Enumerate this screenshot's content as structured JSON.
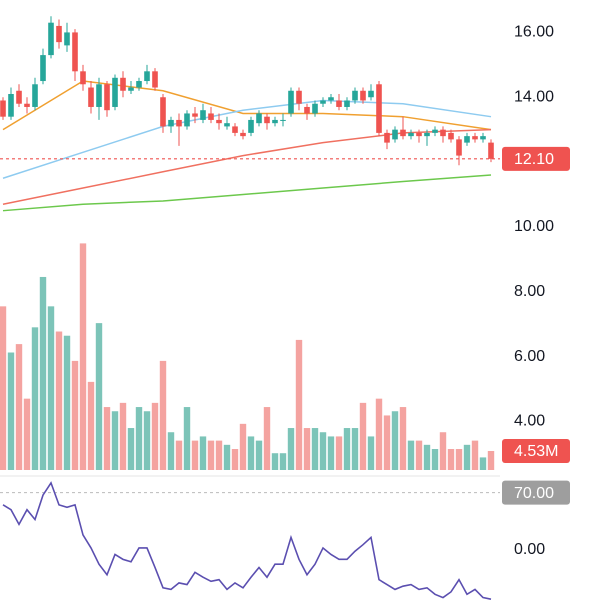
{
  "chart_data": {
    "type": "candlestick",
    "ylim": [
      2.5,
      17
    ],
    "yticks": [
      {
        "value": 4,
        "label": "4.00"
      },
      {
        "value": 6,
        "label": "6.00"
      },
      {
        "value": 8,
        "label": "8.00"
      },
      {
        "value": 10,
        "label": "10.00"
      },
      {
        "value": 12,
        "label": "12.00"
      },
      {
        "value": 14,
        "label": "14.00"
      },
      {
        "value": 16,
        "label": "16.00"
      }
    ],
    "up_color": "#26a69a",
    "down_color": "#ef5350",
    "open": [
      13.9,
      13.4,
      14.2,
      13.8,
      13.7,
      14.5,
      15.3,
      16.2,
      15.6,
      16.0,
      14.8,
      14.3,
      13.7,
      14.4,
      13.7,
      14.6,
      14.2,
      14.3,
      14.5,
      14.8,
      14.0,
      13.1,
      13.3,
      13.1,
      13.5,
      13.3,
      13.5,
      13.3,
      13.1,
      13.1,
      12.9,
      12.9,
      13.2,
      13.4,
      13.2,
      13.3,
      13.5,
      14.2,
      13.7,
      13.5,
      13.8,
      13.9,
      13.9,
      13.7,
      13.9,
      14.2,
      14.0,
      14.4,
      12.9,
      12.7,
      13.0,
      12.8,
      12.9,
      12.8,
      12.9,
      13.0,
      12.9,
      12.7,
      12.6,
      12.8,
      12.7,
      12.6
    ],
    "high": [
      14.0,
      14.3,
      14.4,
      14.0,
      14.6,
      15.5,
      16.5,
      16.4,
      16.3,
      16.1,
      15.0,
      14.5,
      14.6,
      14.5,
      14.7,
      14.8,
      14.5,
      14.6,
      15.0,
      14.9,
      14.1,
      13.4,
      13.5,
      13.6,
      13.7,
      13.8,
      13.7,
      13.5,
      13.4,
      13.2,
      13.0,
      13.4,
      13.6,
      13.5,
      13.4,
      13.5,
      14.3,
      14.3,
      13.8,
      13.9,
      14.0,
      14.1,
      14.1,
      14.0,
      14.3,
      14.3,
      14.4,
      14.5,
      13.0,
      13.1,
      13.4,
      13.0,
      13.0,
      13.0,
      13.1,
      13.1,
      13.0,
      12.8,
      12.9,
      12.9,
      12.9,
      12.7
    ],
    "low": [
      13.3,
      13.3,
      13.7,
      13.5,
      13.6,
      14.4,
      15.2,
      15.5,
      15.4,
      14.5,
      14.2,
      13.5,
      13.3,
      13.4,
      13.6,
      14.0,
      14.1,
      14.2,
      14.4,
      14.2,
      12.9,
      12.9,
      12.5,
      13.0,
      13.2,
      13.2,
      13.2,
      13.0,
      13.0,
      12.8,
      12.7,
      12.8,
      13.1,
      13.0,
      13.1,
      13.1,
      13.4,
      13.6,
      13.3,
      13.4,
      13.7,
      13.8,
      13.6,
      13.6,
      13.8,
      13.8,
      13.9,
      12.8,
      12.4,
      12.6,
      12.7,
      12.7,
      12.6,
      12.5,
      12.8,
      12.6,
      12.6,
      11.9,
      12.5,
      12.6,
      12.6,
      12.0
    ],
    "close": [
      13.4,
      14.1,
      13.8,
      13.7,
      14.4,
      15.3,
      16.3,
      15.7,
      16.0,
      14.8,
      14.4,
      13.7,
      14.4,
      13.6,
      14.6,
      14.2,
      14.3,
      14.5,
      14.8,
      14.3,
      13.1,
      13.3,
      13.1,
      13.5,
      13.4,
      13.6,
      13.3,
      13.2,
      13.2,
      12.9,
      12.8,
      13.3,
      13.5,
      13.2,
      13.3,
      13.3,
      14.2,
      13.8,
      13.5,
      13.8,
      13.9,
      14.0,
      13.7,
      13.9,
      14.2,
      13.9,
      14.2,
      12.9,
      12.6,
      13.0,
      12.8,
      12.9,
      12.8,
      12.9,
      13.0,
      12.8,
      12.7,
      12.2,
      12.8,
      12.7,
      12.8,
      12.1
    ],
    "last_price": {
      "value": 12.1,
      "label": "12.10"
    },
    "moving_averages": [
      {
        "color": "#f0a030",
        "x": [
          0,
          10,
          20,
          30,
          40,
          50,
          61
        ],
        "values": [
          13.0,
          14.5,
          14.2,
          13.5,
          13.5,
          13.4,
          13.0
        ]
      },
      {
        "color": "#8ecbf0",
        "x": [
          0,
          10,
          20,
          30,
          40,
          50,
          61
        ],
        "values": [
          11.5,
          12.3,
          13.1,
          13.6,
          13.9,
          13.8,
          13.4
        ]
      },
      {
        "color": "#f07060",
        "x": [
          0,
          10,
          20,
          30,
          40,
          50,
          61
        ],
        "values": [
          10.7,
          11.2,
          11.7,
          12.2,
          12.6,
          12.9,
          13.0
        ]
      },
      {
        "color": "#6cc84c",
        "x": [
          0,
          10,
          20,
          30,
          40,
          50,
          61
        ],
        "values": [
          10.5,
          10.7,
          10.8,
          11.0,
          11.2,
          11.4,
          11.6
        ]
      }
    ],
    "volume": {
      "ylim": [
        0,
        112
      ],
      "up_color": "#7cc4b8",
      "down_color": "#f4a3a0",
      "values": [
        39,
        28,
        30,
        17,
        34,
        46,
        39,
        33,
        32,
        26,
        54,
        21,
        35,
        15,
        14,
        16,
        10,
        15,
        14,
        16,
        26,
        9,
        7,
        15,
        7,
        8,
        7,
        7,
        6,
        5,
        11,
        8,
        7,
        15,
        4,
        4,
        10,
        31,
        10,
        10,
        9,
        8,
        8,
        10,
        10,
        16,
        8,
        17,
        13,
        14,
        15,
        7,
        7,
        6,
        5,
        9,
        5,
        5,
        6,
        7,
        3,
        4.53
      ],
      "last": {
        "value": 4.53,
        "label": "4.53M"
      }
    },
    "indicator": {
      "color": "#5b4fb0",
      "ylim": [
        -62,
        88
      ],
      "yticks": [
        {
          "value": 0,
          "label": "0.00"
        },
        {
          "value": 70,
          "label": "70.00"
        }
      ],
      "values": [
        55,
        49,
        31,
        49,
        37,
        67,
        82,
        55,
        52,
        55,
        18,
        2,
        -18,
        -31,
        -6,
        -12,
        -15,
        2,
        2,
        -22,
        -47,
        -49,
        -41,
        -43,
        -28,
        -34,
        -39,
        -37,
        -49,
        -41,
        -47,
        -34,
        -22,
        -34,
        -18,
        -18,
        15,
        -12,
        -31,
        -18,
        2,
        -6,
        -12,
        -12,
        -2,
        6,
        15,
        -37,
        -43,
        -49,
        -45,
        -43,
        -49,
        -47,
        -55,
        -59,
        -52,
        -37,
        -55,
        -49,
        -59,
        -61
      ]
    }
  }
}
